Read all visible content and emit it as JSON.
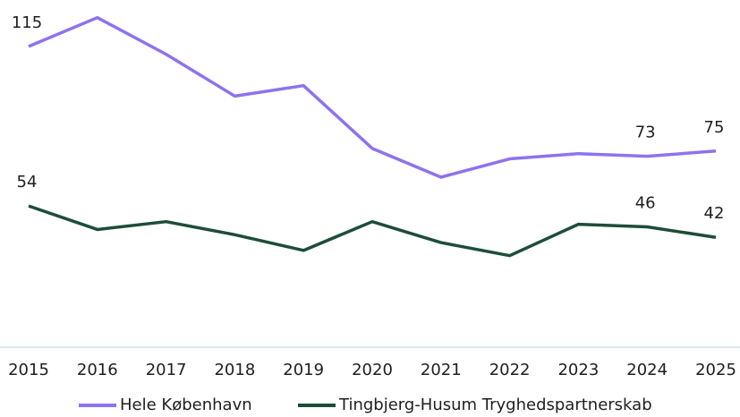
{
  "chart_data": {
    "type": "line",
    "categories": [
      "2015",
      "2016",
      "2017",
      "2018",
      "2019",
      "2020",
      "2021",
      "2022",
      "2023",
      "2024",
      "2025"
    ],
    "series": [
      {
        "name": "Hele København",
        "color": "#8e72ee",
        "values": [
          115,
          126,
          112,
          96,
          100,
          76,
          65,
          72,
          74,
          73,
          75
        ],
        "data_labels": [
          0,
          9,
          10
        ]
      },
      {
        "name": "Tingbjerg-Husum Tryghedspartnerskab",
        "color": "#1d4d38",
        "values": [
          54,
          45,
          48,
          43,
          37,
          48,
          40,
          35,
          47,
          46,
          42
        ],
        "data_labels": [
          0,
          9,
          10
        ]
      }
    ],
    "ylim": [
      0,
      130
    ],
    "legend": "bottom"
  }
}
